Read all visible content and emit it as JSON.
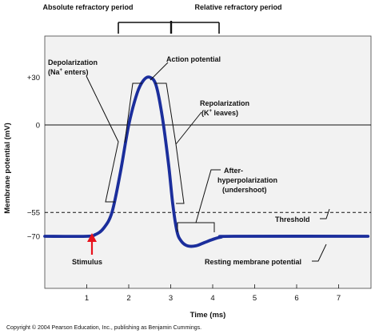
{
  "chart_data": {
    "type": "line",
    "xlabel": "Time (ms)",
    "ylabel": "Membrane potential (mV)",
    "xlim": [
      0,
      7.7
    ],
    "ylim": [
      -82,
      50
    ],
    "x_ticks": [
      "1",
      "2",
      "3",
      "4",
      "5",
      "6",
      "7"
    ],
    "y_ticks": [
      "+30",
      "0",
      "−55",
      "−70"
    ],
    "series": [
      {
        "x": [
          0,
          1.0,
          1.2,
          1.4,
          1.6,
          1.8,
          2.0,
          2.2,
          2.35,
          2.5,
          2.65,
          2.8,
          2.95,
          3.05,
          3.15,
          3.25,
          3.4,
          3.6,
          3.8,
          4.0,
          4.2,
          4.5,
          7.7
        ],
        "y": [
          -70,
          -70,
          -69,
          -65,
          -55,
          -30,
          0,
          20,
          28,
          30,
          25,
          5,
          -25,
          -50,
          -67,
          -73,
          -76,
          -76,
          -74,
          -72,
          -70.5,
          -70,
          -70
        ]
      }
    ],
    "reference_lines": [
      {
        "y": 0,
        "style": "solid"
      },
      {
        "y": -55,
        "style": "dashed"
      }
    ],
    "period_brackets": [
      {
        "label": "Absolute refractory period",
        "x_start": 1.7,
        "x_end": 3.0
      },
      {
        "label": "Relative refractory period",
        "x_start": 3.0,
        "x_end": 4.2
      }
    ],
    "annotations": {
      "depolarization_line1": "Depolarization",
      "depolarization_line2": "(Na",
      "depolarization_sup": "+",
      "depolarization_line2b": " enters)",
      "action_potential": "Action potential",
      "repolarization_line1": "Repolarization",
      "repolarization_line2": "(K",
      "repolarization_sup": "+",
      "repolarization_line2b": " leaves)",
      "after_line1": "After-",
      "after_line2": "hyperpolarization",
      "after_line3": "(undershoot)",
      "threshold": "Threshold",
      "resting": "Resting membrane potential",
      "stimulus": "Stimulus"
    },
    "colors": {
      "trace": "#1b2e9c",
      "stimulus_arrow": "#e8121c",
      "panel": "#f2f2f2"
    }
  },
  "copyright": "Copyright © 2004 Pearson Education, Inc., publishing as Benjamin Cummings."
}
